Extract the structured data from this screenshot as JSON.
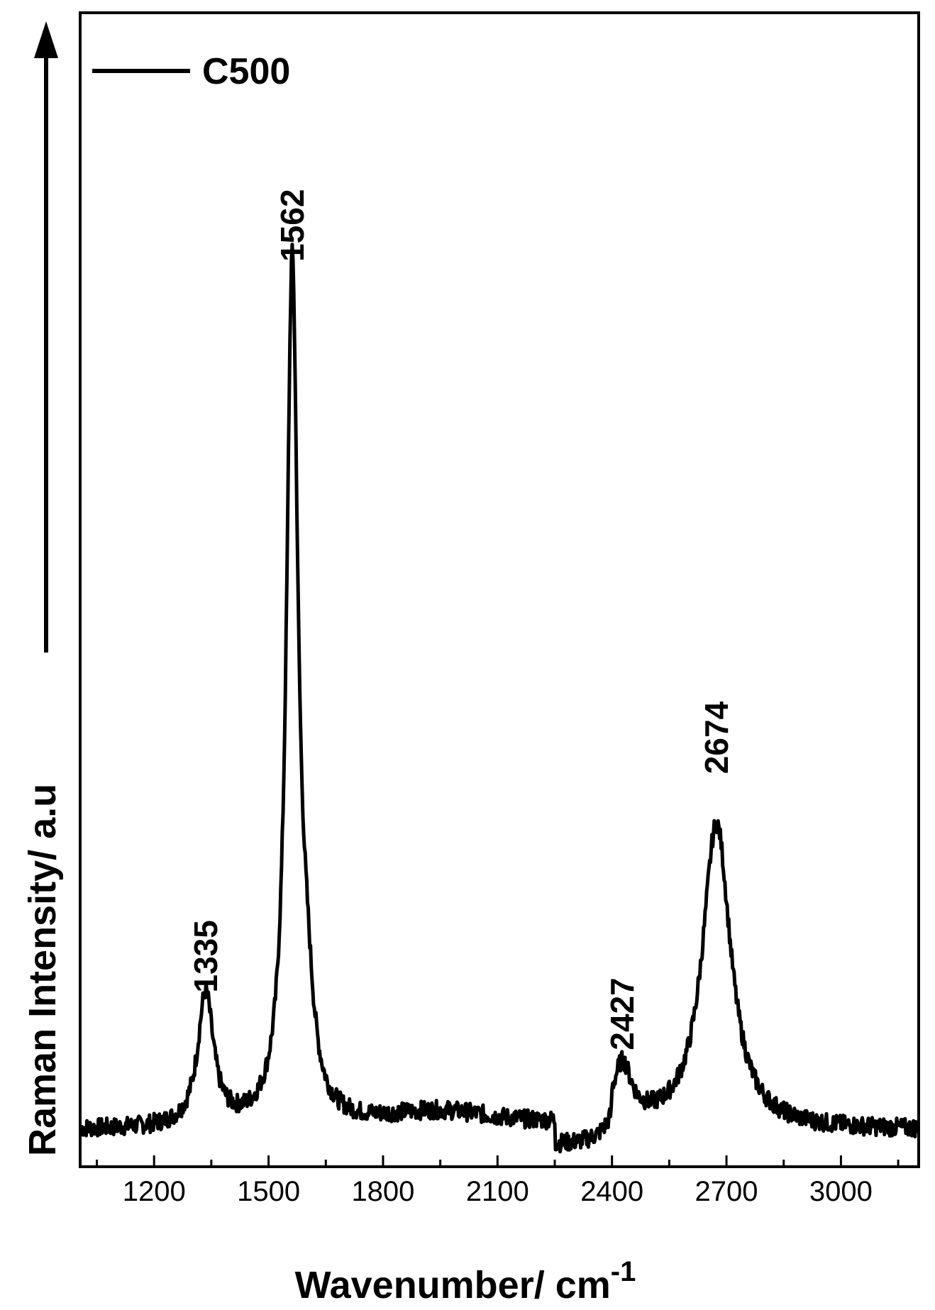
{
  "chart_data": {
    "type": "line",
    "title": "",
    "xlabel": "Wavenumber/ cm",
    "xlabel_superscript": "-1",
    "ylabel": "Raman Intensity/ a.u",
    "xlim": [
      1010,
      3200
    ],
    "ylim": [
      0,
      1000
    ],
    "x_ticks": [
      1200,
      1500,
      1800,
      2100,
      2400,
      2700,
      3000
    ],
    "x_minor_ticks": [
      1050,
      1350,
      1650,
      1950,
      2250,
      2550,
      2850,
      3150
    ],
    "grid": false,
    "legend": {
      "position": "top-left",
      "entries": [
        "C500"
      ]
    },
    "series": [
      {
        "name": "C500",
        "color": "#000000",
        "baseline": 30,
        "peaks": [
          {
            "center": 1335,
            "height": 115,
            "width": 25
          },
          {
            "center": 1562,
            "height": 740,
            "width": 18
          },
          {
            "center": 1600,
            "height": 70,
            "width": 22
          },
          {
            "center": 2427,
            "height": 50,
            "width": 30
          },
          {
            "center": 2674,
            "height": 265,
            "width": 45
          },
          {
            "center": 1950,
            "height": 15,
            "width": 200
          }
        ]
      }
    ],
    "annotations": [
      {
        "text": "1335",
        "x": 1335,
        "y": 150
      },
      {
        "text": "1562",
        "x": 1562,
        "y": 785
      },
      {
        "text": "2427",
        "x": 2427,
        "y": 100
      },
      {
        "text": "2674",
        "x": 2674,
        "y": 340
      }
    ]
  }
}
